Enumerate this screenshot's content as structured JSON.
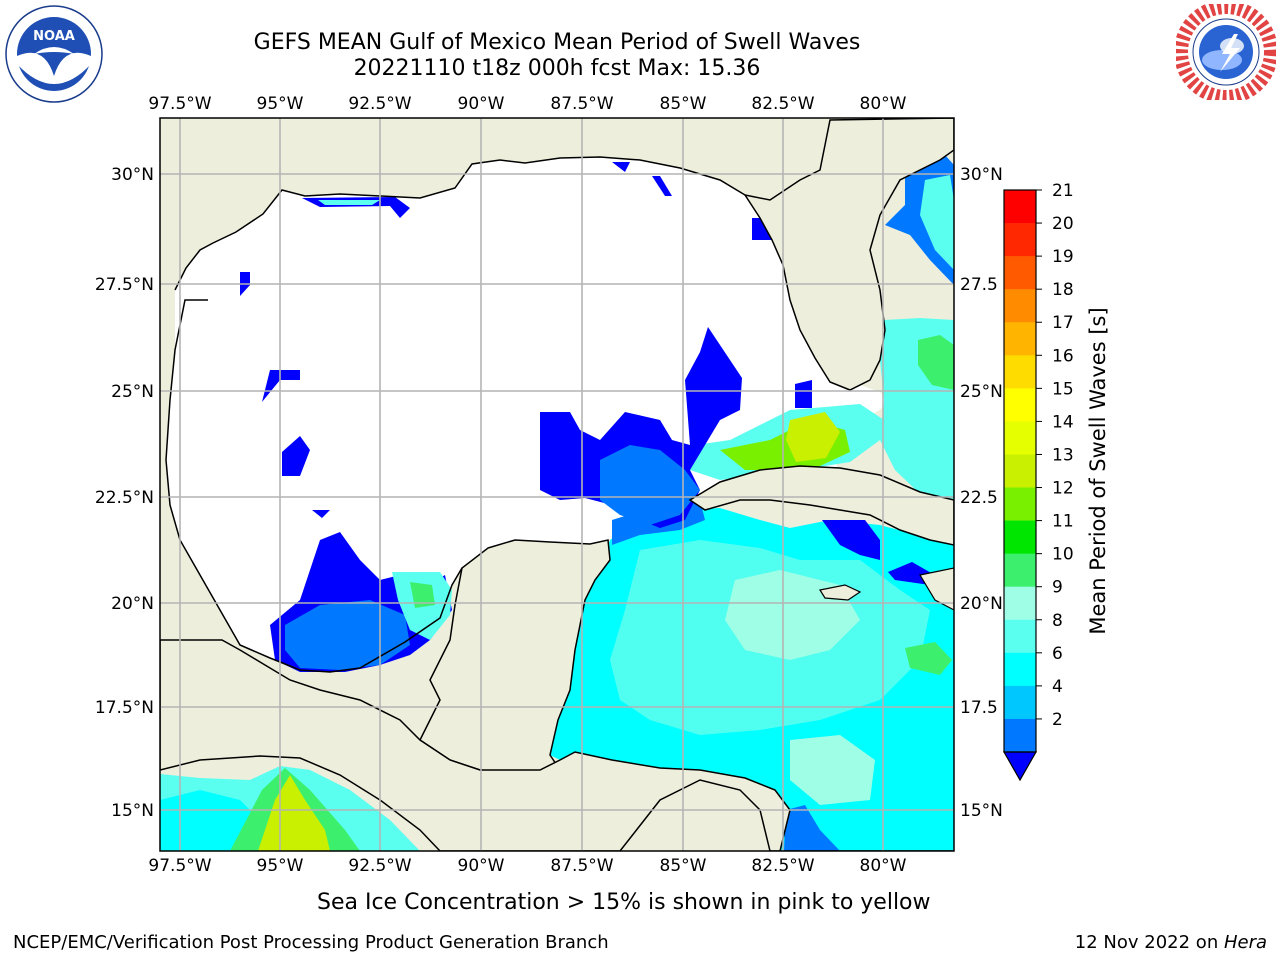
{
  "header": {
    "title_line1": "GEFS MEAN Gulf of Mexico Mean Period of Swell Waves",
    "title_line2": "20221110 t18z 000h fcst   Max: 15.36"
  },
  "logos": {
    "left": {
      "name": "NOAA",
      "ring_text": "NATIONAL OCEANIC AND ATMOSPHERIC ADMINISTRATION · U.S. DEPARTMENT OF COMMERCE"
    },
    "right": {
      "name": "NATIONAL WEATHER SERVICE"
    }
  },
  "map": {
    "lon_labels": [
      "97.5°W",
      "95°W",
      "92.5°W",
      "90°W",
      "87.5°W",
      "85°W",
      "82.5°W",
      "80°W"
    ],
    "lat_labels_left": [
      "30°N",
      "27.5°N",
      "25°N",
      "22.5°N",
      "20°N",
      "17.5°N",
      "15°N"
    ],
    "lat_labels_right": [
      "30°N",
      "27.5",
      "25°N",
      "22.5",
      "20°N",
      "17.5",
      "15°N"
    ],
    "colors": {
      "land": "#eeeedc",
      "ocean_nodata": "#ffffff",
      "grid": "#b4b4b4",
      "coast": "#000000"
    }
  },
  "colorbar": {
    "label": "Mean Period of Swell Waves [s]",
    "ticks": [
      "21",
      "20",
      "19",
      "18",
      "17",
      "16",
      "15",
      "14",
      "13",
      "12",
      "11",
      "10",
      "9",
      "8",
      "6",
      "4",
      "2"
    ],
    "colors": [
      "#ff0000",
      "#ff2800",
      "#ff5a00",
      "#ff8c00",
      "#ffb400",
      "#ffdc00",
      "#ffff00",
      "#e6ff00",
      "#c8f000",
      "#78f000",
      "#00e600",
      "#3cf06e",
      "#9effe6",
      "#5afff0",
      "#00ffff",
      "#00c8ff",
      "#0078ff"
    ],
    "under_color": "#0000ff"
  },
  "note": "Sea Ice Concentration > 15% is shown in pink to yellow",
  "footer": {
    "left": "NCEP/EMC/Verification Post Processing Product Generation Branch",
    "right_date": "12 Nov 2022 on ",
    "right_host": "Hera"
  }
}
